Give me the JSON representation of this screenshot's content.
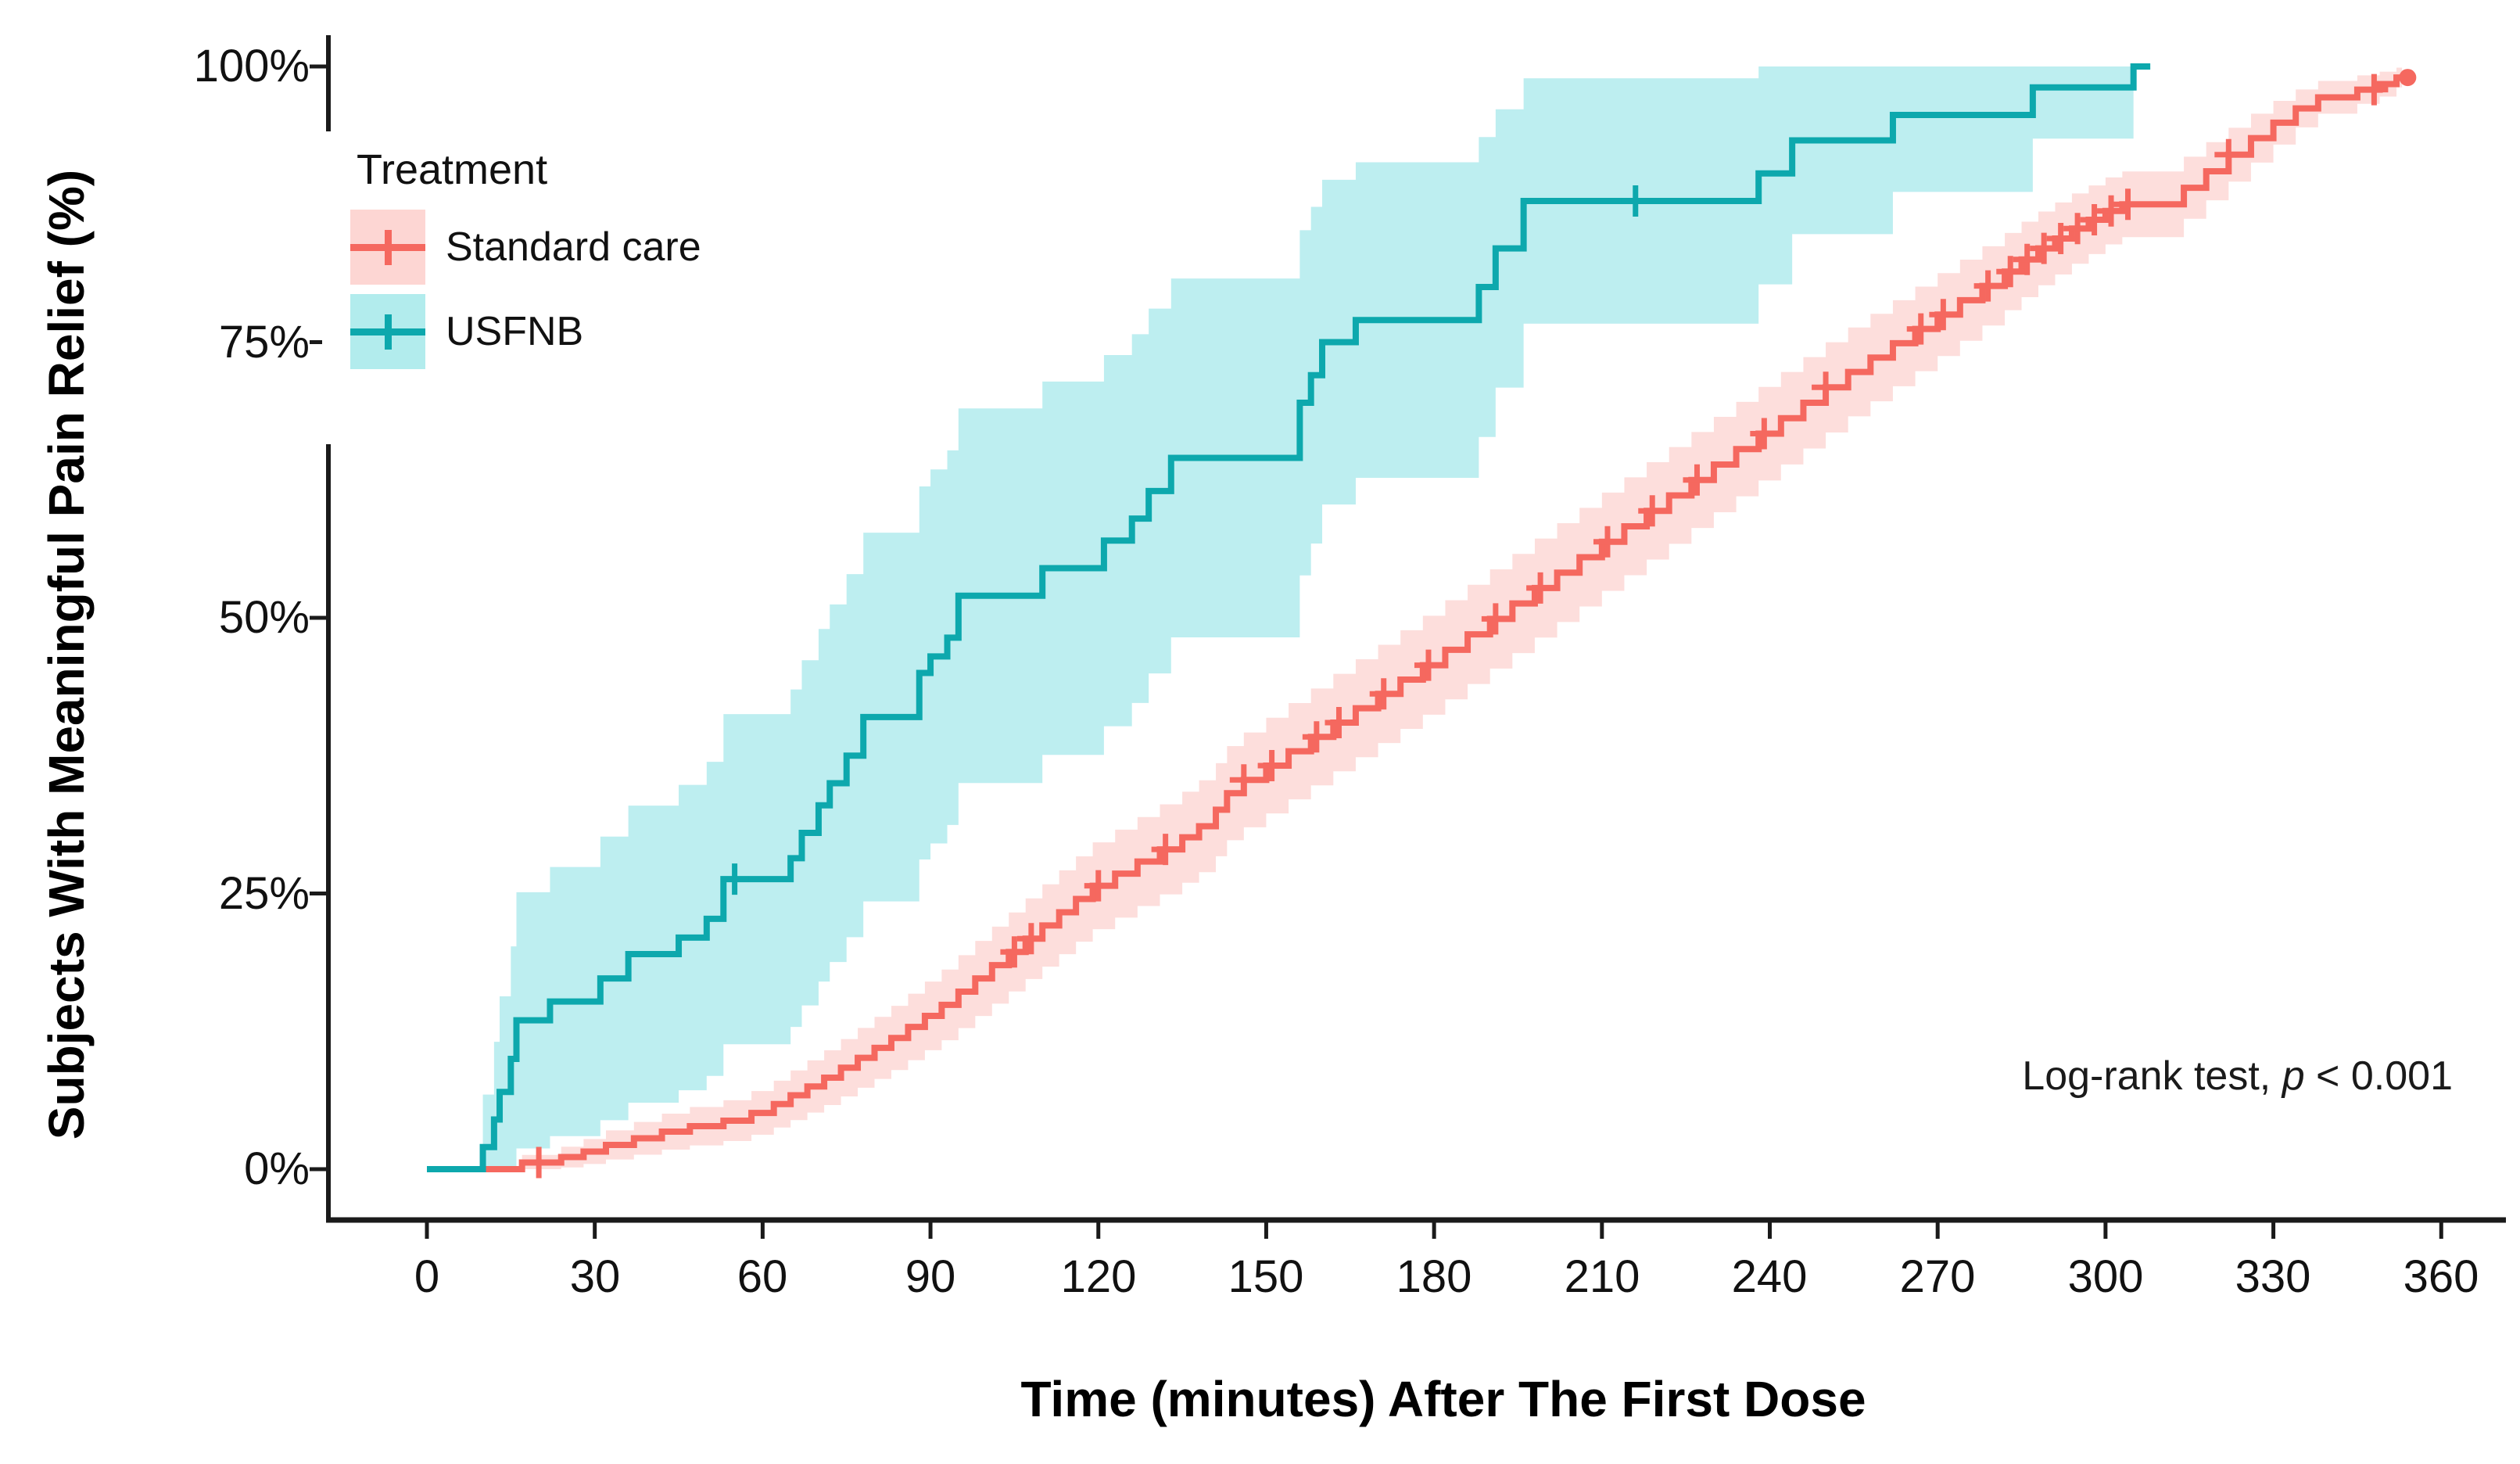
{
  "figure": {
    "y_axis_title": "Subjects With Meaningful Pain Relief (%)",
    "x_axis_title": "Time (minutes) After The First Dose",
    "x_tick_labels": [
      "0",
      "30",
      "60",
      "90",
      "120",
      "150",
      "180",
      "210",
      "240",
      "270",
      "300",
      "330",
      "360"
    ],
    "y_tick_labels": [
      "0%",
      "25%",
      "50%",
      "75%",
      "100%"
    ],
    "legend": {
      "title": "Treatment",
      "items": [
        {
          "label": "Standard care"
        },
        {
          "label": "USFNB"
        }
      ]
    },
    "annotation": {
      "prefix": "Log-rank test, ",
      "p_symbol": "p",
      "suffix": " < 0.001"
    }
  },
  "chart_data": {
    "type": "line",
    "subtype": "kaplan-meier-cumulative-incidence-steps",
    "title": "",
    "xlabel": "Time (minutes) After The First Dose",
    "ylabel": "Subjects With Meaningful Pain Relief (%)",
    "xlim": [
      0,
      360
    ],
    "ylim": [
      0,
      100
    ],
    "x_ticks": [
      0,
      30,
      60,
      90,
      120,
      150,
      180,
      210,
      240,
      270,
      300,
      330,
      360
    ],
    "y_ticks": [
      0,
      25,
      50,
      75,
      100
    ],
    "grid": false,
    "legend_position": "inside-top-left",
    "annotation": "Log-rank test, p < 0.001",
    "axis_color": "#1a1a1a",
    "series": [
      {
        "name": "Standard care",
        "color": "#F5685F",
        "band_color": "rgba(248,118,109,0.24)",
        "ci_halfwidth_at_50pct": 4.5,
        "t_end": 353,
        "end_marker": "dot",
        "end_dot": [
          354,
          99
        ],
        "steps": [
          [
            0,
            0
          ],
          [
            17,
            0.6
          ],
          [
            24,
            1.1
          ],
          [
            28,
            1.6
          ],
          [
            32,
            2.2
          ],
          [
            37,
            2.8
          ],
          [
            42,
            3.4
          ],
          [
            47,
            3.9
          ],
          [
            53,
            4.4
          ],
          [
            58,
            5.1
          ],
          [
            62,
            5.9
          ],
          [
            65,
            6.7
          ],
          [
            68,
            7.5
          ],
          [
            71,
            8.3
          ],
          [
            74,
            9.2
          ],
          [
            77,
            10.1
          ],
          [
            80,
            11
          ],
          [
            83,
            11.9
          ],
          [
            86,
            12.9
          ],
          [
            89,
            13.9
          ],
          [
            92,
            14.9
          ],
          [
            95,
            16.1
          ],
          [
            98,
            17.3
          ],
          [
            101,
            18.5
          ],
          [
            104,
            19.7
          ],
          [
            107,
            20.9
          ],
          [
            110,
            22.1
          ],
          [
            113,
            23.3
          ],
          [
            116,
            24.5
          ],
          [
            119,
            25.7
          ],
          [
            123,
            26.8
          ],
          [
            127,
            27.9
          ],
          [
            131,
            29
          ],
          [
            135,
            30.1
          ],
          [
            138,
            31.1
          ],
          [
            141,
            32.6
          ],
          [
            143,
            34.1
          ],
          [
            146,
            35.3
          ],
          [
            150,
            36.6
          ],
          [
            154,
            37.9
          ],
          [
            158,
            39.2
          ],
          [
            162,
            40.5
          ],
          [
            166,
            41.8
          ],
          [
            170,
            43.1
          ],
          [
            174,
            44.4
          ],
          [
            178,
            45.7
          ],
          [
            182,
            47.1
          ],
          [
            186,
            48.5
          ],
          [
            190,
            49.9
          ],
          [
            194,
            51.3
          ],
          [
            198,
            52.7
          ],
          [
            202,
            54.1
          ],
          [
            206,
            55.5
          ],
          [
            210,
            56.9
          ],
          [
            214,
            58.3
          ],
          [
            218,
            59.7
          ],
          [
            222,
            61.1
          ],
          [
            226,
            62.5
          ],
          [
            230,
            63.9
          ],
          [
            234,
            65.3
          ],
          [
            238,
            66.7
          ],
          [
            242,
            68.1
          ],
          [
            246,
            69.5
          ],
          [
            250,
            70.9
          ],
          [
            254,
            72.3
          ],
          [
            258,
            73.6
          ],
          [
            262,
            74.9
          ],
          [
            266,
            76.2
          ],
          [
            270,
            77.5
          ],
          [
            274,
            78.8
          ],
          [
            278,
            80.1
          ],
          [
            282,
            81.4
          ],
          [
            285,
            82.5
          ],
          [
            288,
            83.5
          ],
          [
            291,
            84.4
          ],
          [
            294,
            85.3
          ],
          [
            297,
            86.1
          ],
          [
            300,
            86.9
          ],
          [
            303,
            87.5
          ],
          [
            314,
            89
          ],
          [
            318,
            90.5
          ],
          [
            322,
            92
          ],
          [
            326,
            93.5
          ],
          [
            330,
            94.9
          ],
          [
            334,
            96.2
          ],
          [
            338,
            97.2
          ],
          [
            345,
            97.9
          ],
          [
            349,
            98.4
          ],
          [
            352,
            99
          ]
        ],
        "censor_times": [
          20,
          105,
          108,
          120,
          132,
          146,
          151,
          159,
          163,
          171,
          179,
          191,
          199,
          211,
          219,
          227,
          239,
          250,
          267,
          271,
          279,
          283,
          286,
          289,
          292,
          295,
          298,
          301,
          304,
          322,
          348
        ]
      },
      {
        "name": "USFNB",
        "color": "#0DA8AD",
        "band_color": "rgba(0,191,196,0.26)",
        "ci_halfwidth_at_50pct": 17,
        "t_end": 308,
        "end_marker": "none",
        "steps": [
          [
            0,
            0
          ],
          [
            10,
            2
          ],
          [
            12,
            4.5
          ],
          [
            13,
            7
          ],
          [
            15,
            10
          ],
          [
            16,
            13.5
          ],
          [
            22,
            15.2
          ],
          [
            31,
            17.3
          ],
          [
            36,
            19.5
          ],
          [
            45,
            21
          ],
          [
            50,
            22.7
          ],
          [
            53,
            26.3
          ],
          [
            65,
            28.2
          ],
          [
            67,
            30.5
          ],
          [
            70,
            33
          ],
          [
            72,
            35
          ],
          [
            75,
            37.5
          ],
          [
            78,
            41
          ],
          [
            88,
            45
          ],
          [
            90,
            46.5
          ],
          [
            93,
            48.2
          ],
          [
            95,
            52
          ],
          [
            110,
            54.5
          ],
          [
            121,
            57
          ],
          [
            126,
            59
          ],
          [
            129,
            61.5
          ],
          [
            133,
            64.5
          ],
          [
            156,
            69.5
          ],
          [
            158,
            72
          ],
          [
            160,
            75
          ],
          [
            166,
            77
          ],
          [
            188,
            80
          ],
          [
            191,
            83.5
          ],
          [
            196,
            87.8
          ],
          [
            238,
            90.3
          ],
          [
            244,
            93.3
          ],
          [
            262,
            95.6
          ],
          [
            287,
            98.1
          ],
          [
            305,
            100
          ]
        ],
        "censor_times": [
          55,
          216
        ]
      }
    ]
  }
}
